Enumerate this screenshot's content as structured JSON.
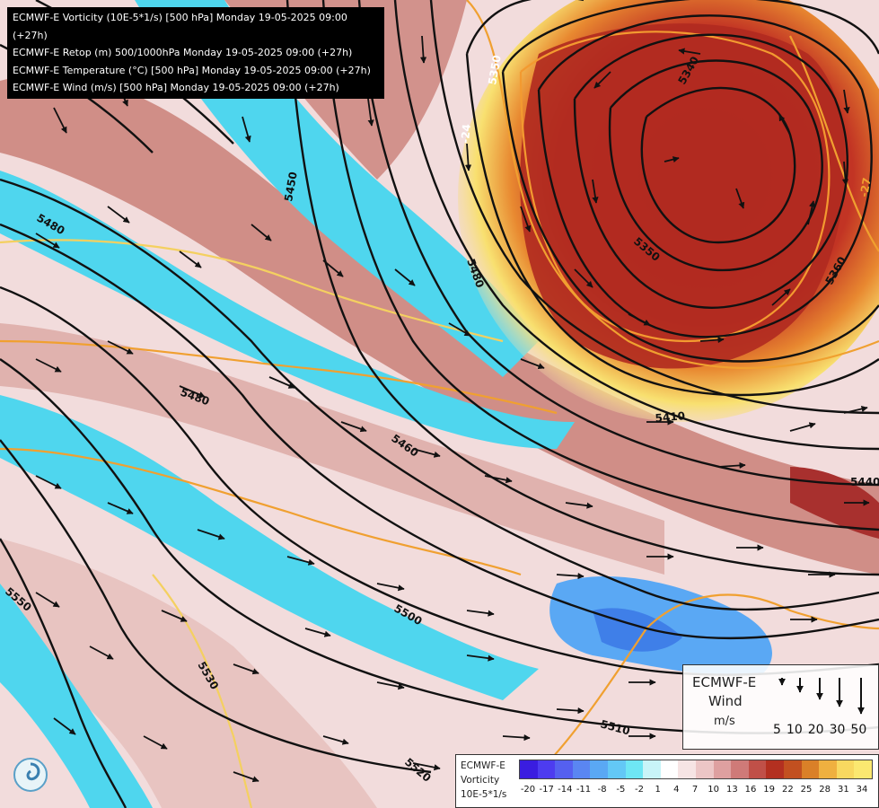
{
  "header": {
    "lines": [
      "ECMWF-E Vorticity (10E-5*1/s) [500 hPa] Monday 19-05-2025 09:00 (+27h)",
      "ECMWF-E Retop (m) 500/1000hPa Monday 19-05-2025 09:00 (+27h)",
      "ECMWF-E Temperature (°C) [500 hPa] Monday 19-05-2025 09:00 (+27h)",
      "ECMWF-E Wind (m/s) [500 hPa] Monday 19-05-2025 09:00 (+27h)"
    ]
  },
  "contour_labels": [
    "5480",
    "5450",
    "5480",
    "5480",
    "5460",
    "5410",
    "5440",
    "5500",
    "5550",
    "5530",
    "5520",
    "5510",
    "5340",
    "5350",
    "5360",
    "5350",
    "-24",
    "-27"
  ],
  "wind_legend": {
    "title": "ECMWF-E",
    "subtitle": "Wind",
    "unit": "m/s",
    "speeds": [
      "5",
      "10",
      "20",
      "30",
      "50"
    ]
  },
  "color_legend": {
    "line1": "ECMWF-E",
    "line2": "Vorticity",
    "line3": "10E-5*1/s",
    "ticks": [
      "-20",
      "-17",
      "-14",
      "-11",
      "-8",
      "-5",
      "-2",
      "1",
      "4",
      "7",
      "10",
      "13",
      "16",
      "19",
      "22",
      "25",
      "28",
      "31",
      "34"
    ],
    "colors": [
      "#3a1de0",
      "#4d3cf0",
      "#5560f0",
      "#5a86f2",
      "#5aa8f4",
      "#63c8f6",
      "#6ee6f4",
      "#c8f4f8",
      "#ffffff",
      "#f6e4e4",
      "#ecc6c6",
      "#dea0a0",
      "#cf7a78",
      "#c05048",
      "#b33020",
      "#c25020",
      "#da8028",
      "#efb040",
      "#f8d860",
      "#fbe870"
    ]
  },
  "colors": {
    "pos_vort": "#a8302e",
    "neg_vort": "#4fd6ee",
    "temp_line": "#f0a030",
    "isohypse": "#111111"
  }
}
